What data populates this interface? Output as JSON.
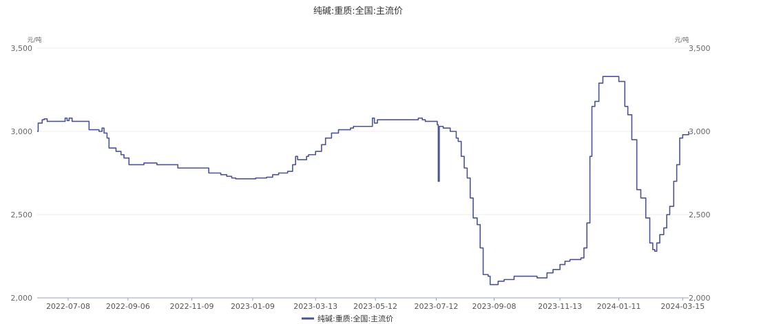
{
  "chart_data": {
    "type": "line",
    "title": "纯碱:重质:全国:主流价",
    "unit_left": "元/吨",
    "unit_right": "元/吨",
    "ylim": [
      2000,
      3500
    ],
    "yticks": [
      "3,500",
      "3,000",
      "2,500",
      "2,000"
    ],
    "ytick_values": [
      3500,
      3000,
      2500,
      2000
    ],
    "x_range": [
      "2022-06-07",
      "2024-03-21"
    ],
    "xticks": [
      "2022-07-08",
      "2022-09-06",
      "2022-11-09",
      "2023-01-09",
      "2023-03-13",
      "2023-05-12",
      "2023-07-12",
      "2023-09-08",
      "2023-11-13",
      "2024-01-11",
      "2024-03-15"
    ],
    "grid": true,
    "legend_position": "bottom-center",
    "series": [
      {
        "name": "纯碱:重质:全国:主流价",
        "color": "#4b5295",
        "points": [
          [
            "2022-06-07",
            3000
          ],
          [
            "2022-06-08",
            3050
          ],
          [
            "2022-06-12",
            3070
          ],
          [
            "2022-06-14",
            3075
          ],
          [
            "2022-06-17",
            3060
          ],
          [
            "2022-07-03",
            3060
          ],
          [
            "2022-07-05",
            3080
          ],
          [
            "2022-07-07",
            3065
          ],
          [
            "2022-07-09",
            3080
          ],
          [
            "2022-07-12",
            3060
          ],
          [
            "2022-07-26",
            3060
          ],
          [
            "2022-07-29",
            3010
          ],
          [
            "2022-08-08",
            3000
          ],
          [
            "2022-08-11",
            3020
          ],
          [
            "2022-08-13",
            2990
          ],
          [
            "2022-08-16",
            2960
          ],
          [
            "2022-08-18",
            2900
          ],
          [
            "2022-08-25",
            2880
          ],
          [
            "2022-08-30",
            2860
          ],
          [
            "2022-09-02",
            2840
          ],
          [
            "2022-09-07",
            2800
          ],
          [
            "2022-09-20",
            2800
          ],
          [
            "2022-09-22",
            2810
          ],
          [
            "2022-10-03",
            2810
          ],
          [
            "2022-10-05",
            2800
          ],
          [
            "2022-10-24",
            2800
          ],
          [
            "2022-10-26",
            2780
          ],
          [
            "2022-11-23",
            2780
          ],
          [
            "2022-11-26",
            2750
          ],
          [
            "2022-12-08",
            2740
          ],
          [
            "2022-12-14",
            2730
          ],
          [
            "2022-12-19",
            2720
          ],
          [
            "2022-12-23",
            2715
          ],
          [
            "2023-01-10",
            2715
          ],
          [
            "2023-01-12",
            2720
          ],
          [
            "2023-01-23",
            2725
          ],
          [
            "2023-01-29",
            2740
          ],
          [
            "2023-02-04",
            2750
          ],
          [
            "2023-02-13",
            2760
          ],
          [
            "2023-02-18",
            2800
          ],
          [
            "2023-02-21",
            2850
          ],
          [
            "2023-02-23",
            2830
          ],
          [
            "2023-03-04",
            2850
          ],
          [
            "2023-03-06",
            2860
          ],
          [
            "2023-03-13",
            2880
          ],
          [
            "2023-03-19",
            2920
          ],
          [
            "2023-03-23",
            2960
          ],
          [
            "2023-03-29",
            2990
          ],
          [
            "2023-04-05",
            3010
          ],
          [
            "2023-04-17",
            3020
          ],
          [
            "2023-04-20",
            3030
          ],
          [
            "2023-05-07",
            3030
          ],
          [
            "2023-05-09",
            3080
          ],
          [
            "2023-05-11",
            3050
          ],
          [
            "2023-05-14",
            3070
          ],
          [
            "2023-05-19",
            3070
          ],
          [
            "2023-06-24",
            3080
          ],
          [
            "2023-06-28",
            3070
          ],
          [
            "2023-07-01",
            3060
          ],
          [
            "2023-07-11",
            3060
          ],
          [
            "2023-07-13",
            3040
          ],
          [
            "2023-07-14",
            2700
          ],
          [
            "2023-07-15",
            3030
          ],
          [
            "2023-07-19",
            3020
          ],
          [
            "2023-07-26",
            3000
          ],
          [
            "2023-08-01",
            2960
          ],
          [
            "2023-08-03",
            2940
          ],
          [
            "2023-08-06",
            2850
          ],
          [
            "2023-08-09",
            2780
          ],
          [
            "2023-08-12",
            2720
          ],
          [
            "2023-08-15",
            2600
          ],
          [
            "2023-08-18",
            2480
          ],
          [
            "2023-08-22",
            2440
          ],
          [
            "2023-08-25",
            2300
          ],
          [
            "2023-08-28",
            2140
          ],
          [
            "2023-09-02",
            2130
          ],
          [
            "2023-09-04",
            2080
          ],
          [
            "2023-09-07",
            2080
          ],
          [
            "2023-09-12",
            2100
          ],
          [
            "2023-09-18",
            2110
          ],
          [
            "2023-09-28",
            2130
          ],
          [
            "2023-10-21",
            2120
          ],
          [
            "2023-10-31",
            2150
          ],
          [
            "2023-11-06",
            2170
          ],
          [
            "2023-11-13",
            2200
          ],
          [
            "2023-11-18",
            2220
          ],
          [
            "2023-11-23",
            2230
          ],
          [
            "2023-12-04",
            2240
          ],
          [
            "2023-12-07",
            2300
          ],
          [
            "2023-12-10",
            2450
          ],
          [
            "2023-12-13",
            2850
          ],
          [
            "2023-12-15",
            3150
          ],
          [
            "2023-12-18",
            3180
          ],
          [
            "2023-12-22",
            3290
          ],
          [
            "2023-12-26",
            3330
          ],
          [
            "2024-01-09",
            3330
          ],
          [
            "2024-01-11",
            3300
          ],
          [
            "2024-01-17",
            3150
          ],
          [
            "2024-01-20",
            3100
          ],
          [
            "2024-01-24",
            2950
          ],
          [
            "2024-01-29",
            2650
          ],
          [
            "2024-02-02",
            2600
          ],
          [
            "2024-02-07",
            2480
          ],
          [
            "2024-02-11",
            2330
          ],
          [
            "2024-02-14",
            2290
          ],
          [
            "2024-02-16",
            2280
          ],
          [
            "2024-02-18",
            2330
          ],
          [
            "2024-02-21",
            2380
          ],
          [
            "2024-02-25",
            2420
          ],
          [
            "2024-02-28",
            2500
          ],
          [
            "2024-03-02",
            2550
          ],
          [
            "2024-03-06",
            2700
          ],
          [
            "2024-03-09",
            2800
          ],
          [
            "2024-03-12",
            2960
          ],
          [
            "2024-03-15",
            2980
          ],
          [
            "2024-03-21",
            3000
          ]
        ]
      }
    ]
  }
}
